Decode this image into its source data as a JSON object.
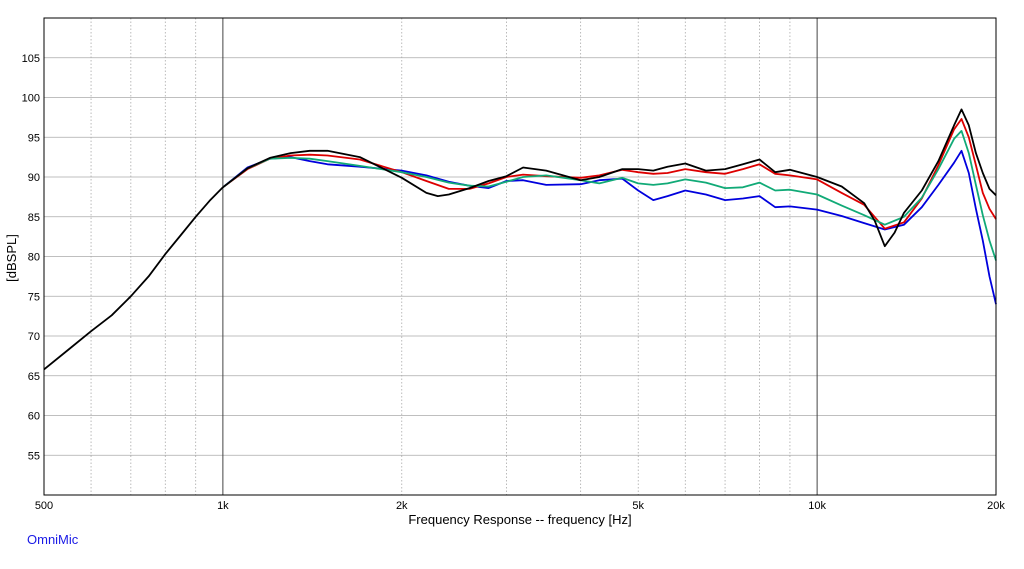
{
  "brand": "OmniMic",
  "colors": {
    "grid_minor": "#aaaaaa",
    "grid_major": "#444444",
    "frame": "#000000",
    "brand": "#1a1ae6"
  },
  "chart_data": {
    "type": "line",
    "xlabel": "Frequency Response -- frequency [Hz]",
    "ylabel": "[dBSPL]",
    "x_scale": "log",
    "xlim": [
      500,
      20000
    ],
    "ylim": [
      50,
      110
    ],
    "grid": true,
    "x_ticks": [
      {
        "value": 500,
        "label": "500"
      },
      {
        "value": 1000,
        "label": "1k"
      },
      {
        "value": 2000,
        "label": "2k"
      },
      {
        "value": 5000,
        "label": "5k"
      },
      {
        "value": 10000,
        "label": "10k"
      },
      {
        "value": 20000,
        "label": "20k"
      }
    ],
    "x_minor": [
      600,
      700,
      800,
      900,
      3000,
      4000,
      6000,
      7000,
      8000,
      9000
    ],
    "x_major": [
      1000,
      10000
    ],
    "y_ticks": [
      55,
      60,
      65,
      70,
      75,
      80,
      85,
      90,
      95,
      100,
      105
    ],
    "series": [
      {
        "color": "#0000dd",
        "points": [
          [
            1000,
            88.7
          ],
          [
            1100,
            91.2
          ],
          [
            1200,
            92.3
          ],
          [
            1300,
            92.5
          ],
          [
            1400,
            92.0
          ],
          [
            1500,
            91.6
          ],
          [
            1700,
            91.3
          ],
          [
            2000,
            90.8
          ],
          [
            2200,
            90.2
          ],
          [
            2400,
            89.4
          ],
          [
            2600,
            88.9
          ],
          [
            2800,
            88.6
          ],
          [
            3000,
            89.5
          ],
          [
            3200,
            89.6
          ],
          [
            3500,
            89.0
          ],
          [
            4000,
            89.1
          ],
          [
            4300,
            89.6
          ],
          [
            4700,
            89.8
          ],
          [
            5000,
            88.3
          ],
          [
            5300,
            87.1
          ],
          [
            5600,
            87.6
          ],
          [
            6000,
            88.3
          ],
          [
            6500,
            87.8
          ],
          [
            7000,
            87.1
          ],
          [
            7500,
            87.3
          ],
          [
            8000,
            87.6
          ],
          [
            8500,
            86.2
          ],
          [
            9000,
            86.3
          ],
          [
            10000,
            85.9
          ],
          [
            11000,
            85.1
          ],
          [
            12000,
            84.2
          ],
          [
            13000,
            83.4
          ],
          [
            14000,
            84.0
          ],
          [
            15000,
            86.2
          ],
          [
            16000,
            89.0
          ],
          [
            17000,
            91.8
          ],
          [
            17500,
            93.3
          ],
          [
            18000,
            90.5
          ],
          [
            18500,
            86.0
          ],
          [
            19000,
            82.0
          ],
          [
            19500,
            77.5
          ],
          [
            20000,
            74.0
          ]
        ]
      },
      {
        "color": "#dd0000",
        "points": [
          [
            1000,
            88.7
          ],
          [
            1100,
            91.0
          ],
          [
            1200,
            92.3
          ],
          [
            1300,
            92.7
          ],
          [
            1400,
            92.8
          ],
          [
            1500,
            92.7
          ],
          [
            1700,
            92.2
          ],
          [
            2000,
            90.6
          ],
          [
            2200,
            89.5
          ],
          [
            2400,
            88.5
          ],
          [
            2600,
            88.5
          ],
          [
            2800,
            89.2
          ],
          [
            3000,
            90.0
          ],
          [
            3200,
            90.3
          ],
          [
            3500,
            90.1
          ],
          [
            4000,
            89.9
          ],
          [
            4300,
            90.2
          ],
          [
            4700,
            90.9
          ],
          [
            5000,
            90.6
          ],
          [
            5300,
            90.4
          ],
          [
            5600,
            90.5
          ],
          [
            6000,
            91.0
          ],
          [
            6500,
            90.6
          ],
          [
            7000,
            90.4
          ],
          [
            7500,
            91.0
          ],
          [
            8000,
            91.6
          ],
          [
            8500,
            90.4
          ],
          [
            9000,
            90.2
          ],
          [
            10000,
            89.7
          ],
          [
            11000,
            88.0
          ],
          [
            12000,
            86.5
          ],
          [
            13000,
            83.5
          ],
          [
            14000,
            84.3
          ],
          [
            15000,
            87.3
          ],
          [
            16000,
            91.5
          ],
          [
            17000,
            96.0
          ],
          [
            17500,
            97.3
          ],
          [
            18000,
            95.0
          ],
          [
            18500,
            91.5
          ],
          [
            19000,
            88.0
          ],
          [
            19500,
            86.0
          ],
          [
            20000,
            84.7
          ]
        ]
      },
      {
        "color": "#11aa77",
        "points": [
          [
            1000,
            88.7
          ],
          [
            1100,
            91.1
          ],
          [
            1200,
            92.3
          ],
          [
            1300,
            92.4
          ],
          [
            1400,
            92.3
          ],
          [
            1500,
            92.0
          ],
          [
            1700,
            91.4
          ],
          [
            2000,
            90.6
          ],
          [
            2200,
            90.0
          ],
          [
            2400,
            89.3
          ],
          [
            2600,
            88.9
          ],
          [
            2800,
            88.8
          ],
          [
            3000,
            89.4
          ],
          [
            3200,
            90.0
          ],
          [
            3500,
            90.2
          ],
          [
            4000,
            89.6
          ],
          [
            4300,
            89.2
          ],
          [
            4700,
            89.9
          ],
          [
            5000,
            89.2
          ],
          [
            5300,
            89.0
          ],
          [
            5600,
            89.2
          ],
          [
            6000,
            89.7
          ],
          [
            6500,
            89.3
          ],
          [
            7000,
            88.6
          ],
          [
            7500,
            88.7
          ],
          [
            8000,
            89.3
          ],
          [
            8500,
            88.3
          ],
          [
            9000,
            88.4
          ],
          [
            10000,
            87.8
          ],
          [
            11000,
            86.4
          ],
          [
            12000,
            85.2
          ],
          [
            13000,
            84.0
          ],
          [
            14000,
            85.0
          ],
          [
            15000,
            87.4
          ],
          [
            16000,
            91.0
          ],
          [
            17000,
            94.8
          ],
          [
            17500,
            95.8
          ],
          [
            18000,
            93.0
          ],
          [
            18500,
            89.0
          ],
          [
            19000,
            85.2
          ],
          [
            19500,
            82.0
          ],
          [
            20000,
            79.5
          ]
        ]
      },
      {
        "color": "#000000",
        "points": [
          [
            500,
            65.8
          ],
          [
            550,
            68.3
          ],
          [
            600,
            70.6
          ],
          [
            650,
            72.6
          ],
          [
            700,
            75.0
          ],
          [
            750,
            77.5
          ],
          [
            800,
            80.3
          ],
          [
            850,
            82.7
          ],
          [
            900,
            85.0
          ],
          [
            950,
            87.0
          ],
          [
            1000,
            88.7
          ],
          [
            1100,
            91.1
          ],
          [
            1200,
            92.4
          ],
          [
            1300,
            93.0
          ],
          [
            1400,
            93.3
          ],
          [
            1500,
            93.3
          ],
          [
            1700,
            92.5
          ],
          [
            2000,
            89.9
          ],
          [
            2200,
            88.0
          ],
          [
            2300,
            87.6
          ],
          [
            2400,
            87.8
          ],
          [
            2600,
            88.6
          ],
          [
            2800,
            89.5
          ],
          [
            3000,
            90.1
          ],
          [
            3200,
            91.2
          ],
          [
            3500,
            90.8
          ],
          [
            4000,
            89.6
          ],
          [
            4300,
            90.0
          ],
          [
            4700,
            91.0
          ],
          [
            5000,
            91.0
          ],
          [
            5300,
            90.8
          ],
          [
            5600,
            91.3
          ],
          [
            6000,
            91.7
          ],
          [
            6500,
            90.8
          ],
          [
            7000,
            91.0
          ],
          [
            7500,
            91.6
          ],
          [
            8000,
            92.2
          ],
          [
            8500,
            90.6
          ],
          [
            9000,
            90.9
          ],
          [
            10000,
            90.0
          ],
          [
            11000,
            88.8
          ],
          [
            12000,
            86.7
          ],
          [
            12500,
            84.5
          ],
          [
            13000,
            81.3
          ],
          [
            13500,
            83.0
          ],
          [
            14000,
            85.5
          ],
          [
            15000,
            88.3
          ],
          [
            16000,
            92.0
          ],
          [
            17000,
            96.5
          ],
          [
            17500,
            98.5
          ],
          [
            18000,
            96.5
          ],
          [
            18500,
            93.0
          ],
          [
            19000,
            90.5
          ],
          [
            19500,
            88.5
          ],
          [
            20000,
            87.7
          ]
        ]
      }
    ]
  }
}
